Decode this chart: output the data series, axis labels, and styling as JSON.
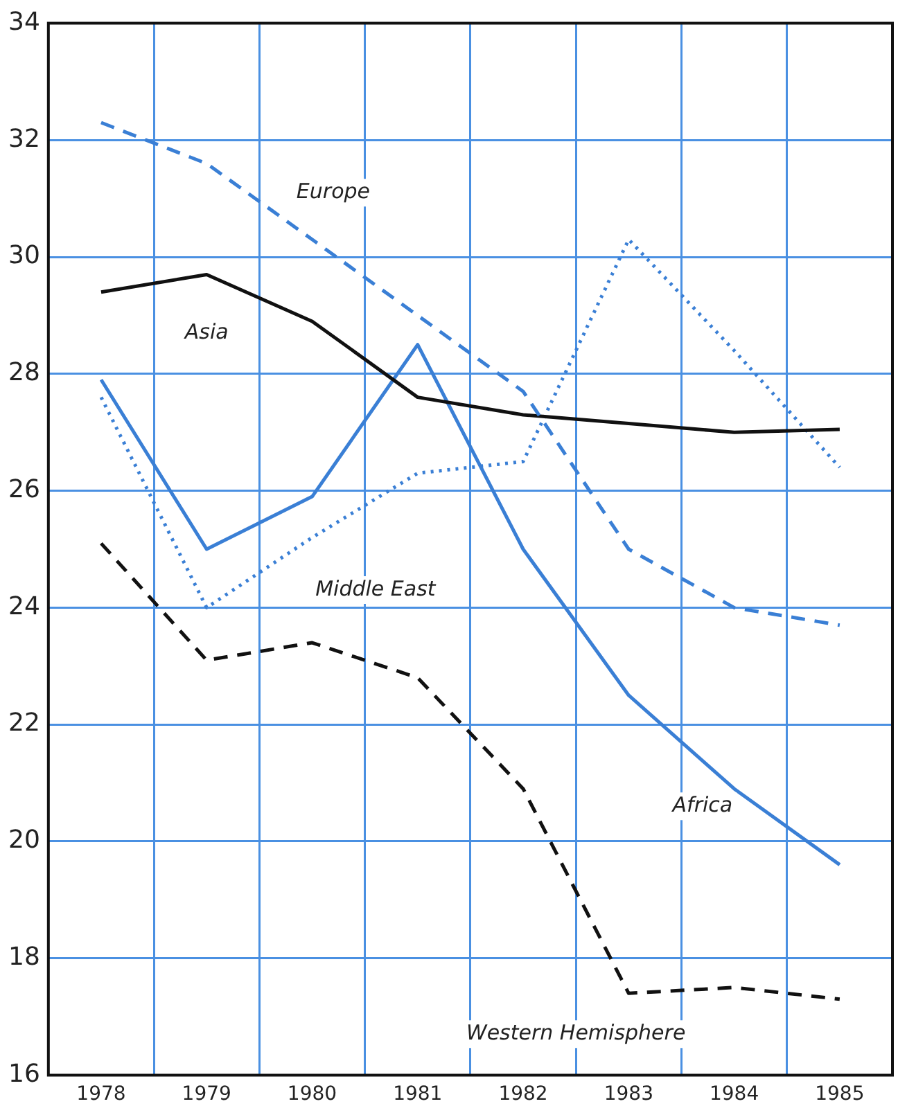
{
  "chart_data": {
    "type": "line",
    "categories": [
      "1978",
      "1979",
      "1980",
      "1981",
      "1982",
      "1983",
      "1984",
      "1985"
    ],
    "series": [
      {
        "name": "Europe",
        "color": "#3a7fd5",
        "line_style": "dashed",
        "values": [
          32.3,
          31.6,
          30.3,
          29.0,
          27.7,
          25.0,
          24.0,
          23.7
        ]
      },
      {
        "name": "Asia",
        "color": "#111111",
        "line_style": "solid",
        "values": [
          29.4,
          29.7,
          28.9,
          27.6,
          27.3,
          27.15,
          27.0,
          27.05
        ]
      },
      {
        "name": "Middle East",
        "color": "#3a7fd5",
        "line_style": "dotted",
        "values": [
          27.6,
          24.0,
          25.2,
          26.3,
          26.5,
          30.3,
          28.4,
          26.4
        ]
      },
      {
        "name": "Africa",
        "color": "#3a7fd5",
        "line_style": "solid",
        "values": [
          27.9,
          25.0,
          25.9,
          28.5,
          25.0,
          22.5,
          20.9,
          19.6
        ]
      },
      {
        "name": "Western Hemisphere",
        "color": "#111111",
        "line_style": "dashed",
        "values": [
          25.1,
          23.1,
          23.4,
          22.8,
          20.9,
          17.4,
          17.5,
          17.3
        ]
      }
    ],
    "ylim": [
      16,
      34
    ],
    "yticks": [
      16,
      18,
      20,
      22,
      24,
      26,
      28,
      30,
      32,
      34
    ],
    "grid": true,
    "legend": false,
    "marker": "none"
  }
}
